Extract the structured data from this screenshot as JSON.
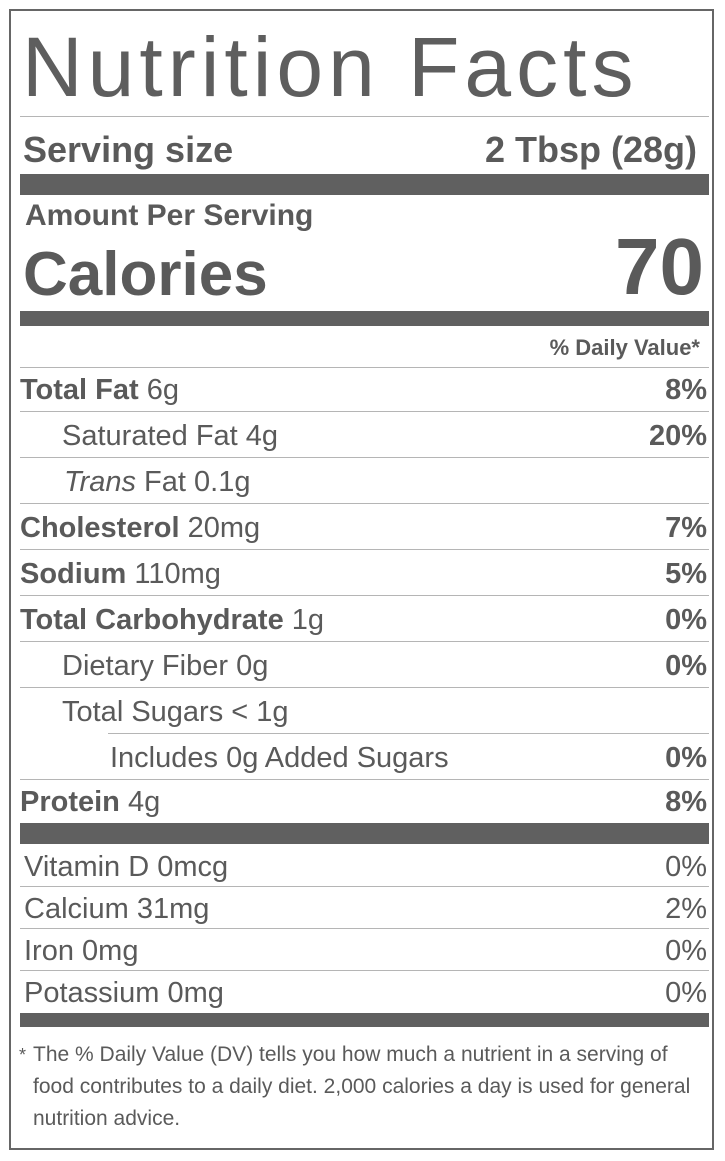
{
  "title": "Nutrition Facts",
  "serving": {
    "label": "Serving size",
    "value": "2 Tbsp (28g)"
  },
  "amount_per_serving": "Amount Per Serving",
  "calories": {
    "label": "Calories",
    "value": "70"
  },
  "dv_header": "% Daily Value*",
  "nutrients": [
    {
      "name": "Total Fat",
      "amount": "6g",
      "dv": "8%"
    },
    {
      "name": "Saturated Fat",
      "amount": "4g",
      "dv": "20%"
    },
    {
      "name_italic": "Trans",
      "name": "Fat",
      "amount": "0.1g",
      "dv": ""
    },
    {
      "name": "Cholesterol",
      "amount": "20mg",
      "dv": "7%"
    },
    {
      "name": "Sodium",
      "amount": "110mg",
      "dv": "5%"
    },
    {
      "name": "Total Carbohydrate",
      "amount": "1g",
      "dv": "0%"
    },
    {
      "name": "Dietary Fiber",
      "amount": "0g",
      "dv": "0%"
    },
    {
      "name": "Total Sugars",
      "amount": "< 1g",
      "dv": ""
    },
    {
      "name": "Includes 0g Added Sugars",
      "amount": "",
      "dv": "0%"
    },
    {
      "name": "Protein",
      "amount": "4g",
      "dv": "8%"
    }
  ],
  "vitamins": [
    {
      "name": "Vitamin D",
      "amount": "0mcg",
      "dv": "0%"
    },
    {
      "name": "Calcium",
      "amount": "31mg",
      "dv": "2%"
    },
    {
      "name": "Iron",
      "amount": "0mg",
      "dv": "0%"
    },
    {
      "name": "Potassium",
      "amount": "0mg",
      "dv": "0%"
    }
  ],
  "footnote": {
    "mark": "*",
    "text": "The % Daily Value (DV) tells you how much a nutrient in a serving of food contributes to a daily diet. 2,000 calories a day is used for general nutrition advice."
  },
  "colors": {
    "text": "#5a5a5a",
    "bars": "#606060",
    "border": "#666666",
    "hairline": "#b5b5b5"
  }
}
